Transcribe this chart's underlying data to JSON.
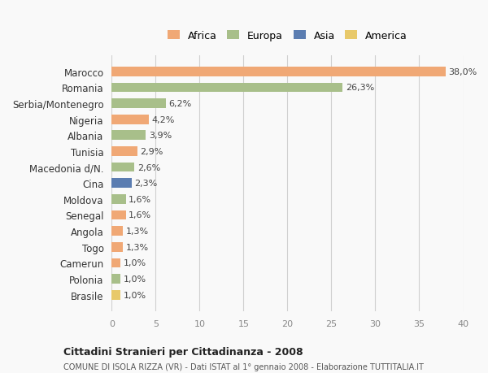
{
  "countries": [
    "Marocco",
    "Romania",
    "Serbia/Montenegro",
    "Nigeria",
    "Albania",
    "Tunisia",
    "Macedonia d/N.",
    "Cina",
    "Moldova",
    "Senegal",
    "Angola",
    "Togo",
    "Camerun",
    "Polonia",
    "Brasile"
  ],
  "values": [
    38.0,
    26.3,
    6.2,
    4.2,
    3.9,
    2.9,
    2.6,
    2.3,
    1.6,
    1.6,
    1.3,
    1.3,
    1.0,
    1.0,
    1.0
  ],
  "labels": [
    "38,0%",
    "26,3%",
    "6,2%",
    "4,2%",
    "3,9%",
    "2,9%",
    "2,6%",
    "2,3%",
    "1,6%",
    "1,6%",
    "1,3%",
    "1,3%",
    "1,0%",
    "1,0%",
    "1,0%"
  ],
  "colors": [
    "#f0a875",
    "#a8bf8a",
    "#a8bf8a",
    "#f0a875",
    "#a8bf8a",
    "#f0a875",
    "#a8bf8a",
    "#5b7db1",
    "#a8bf8a",
    "#f0a875",
    "#f0a875",
    "#f0a875",
    "#f0a875",
    "#a8bf8a",
    "#e8c96a"
  ],
  "continents": [
    "Africa",
    "Europa",
    "Europa",
    "Africa",
    "Europa",
    "Africa",
    "Europa",
    "Asia",
    "Europa",
    "Africa",
    "Africa",
    "Africa",
    "Africa",
    "Europa",
    "America"
  ],
  "legend_labels": [
    "Africa",
    "Europa",
    "Asia",
    "America"
  ],
  "legend_colors": [
    "#f0a875",
    "#a8bf8a",
    "#5b7db1",
    "#e8c96a"
  ],
  "title": "Cittadini Stranieri per Cittadinanza - 2008",
  "subtitle": "COMUNE DI ISOLA RIZZA (VR) - Dati ISTAT al 1° gennaio 2008 - Elaborazione TUTTITALIA.IT",
  "xlim": [
    0,
    40
  ],
  "xticks": [
    0,
    5,
    10,
    15,
    20,
    25,
    30,
    35,
    40
  ],
  "bg_color": "#f9f9f9",
  "grid_color": "#d0d0d0"
}
